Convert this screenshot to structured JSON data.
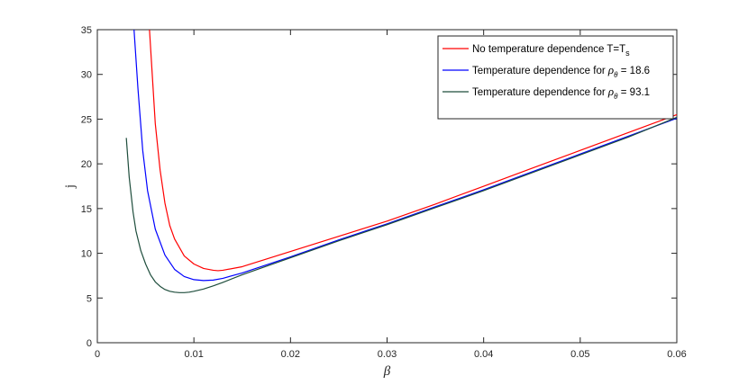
{
  "chart_data": {
    "type": "line",
    "title": "",
    "xlabel": "β",
    "ylabel": "j",
    "xlim": [
      0,
      0.06
    ],
    "ylim": [
      0,
      35
    ],
    "grid": false,
    "legend_position": "top-right",
    "x_ticks": [
      0,
      0.01,
      0.02,
      0.03,
      0.04,
      0.05,
      0.06
    ],
    "x_tick_labels": [
      "0",
      "0.01",
      "0.02",
      "0.03",
      "0.04",
      "0.05",
      "0.06"
    ],
    "y_ticks": [
      0,
      5,
      10,
      15,
      20,
      25,
      30,
      35
    ],
    "y_tick_labels": [
      "0",
      "5",
      "10",
      "15",
      "20",
      "25",
      "30",
      "35"
    ],
    "series": [
      {
        "name": "No temperature dependence T=T",
        "name_subscript": "s",
        "color": "#ff0000",
        "x": [
          0.0054,
          0.0056,
          0.006,
          0.0065,
          0.007,
          0.0075,
          0.008,
          0.009,
          0.01,
          0.011,
          0.012,
          0.0125,
          0.013,
          0.015,
          0.02,
          0.025,
          0.03,
          0.035,
          0.04,
          0.045,
          0.05,
          0.055,
          0.06
        ],
        "y": [
          35,
          31.5,
          24.5,
          19.3,
          15.6,
          13.1,
          11.6,
          9.7,
          8.8,
          8.3,
          8.1,
          8.05,
          8.1,
          8.5,
          10.2,
          11.9,
          13.6,
          15.5,
          17.5,
          19.5,
          21.5,
          23.5,
          25.5
        ]
      },
      {
        "name": "Temperature dependence for ",
        "name_symbol": "ρ",
        "name_symbol_subscript": "θ",
        "name_value": " = 18.6",
        "color": "#0000ff",
        "x": [
          0.0038,
          0.0042,
          0.0047,
          0.0052,
          0.006,
          0.007,
          0.008,
          0.009,
          0.01,
          0.011,
          0.012,
          0.013,
          0.015,
          0.02,
          0.025,
          0.03,
          0.035,
          0.04,
          0.045,
          0.05,
          0.055,
          0.06
        ],
        "y": [
          35,
          28.5,
          21.5,
          17.0,
          12.7,
          9.8,
          8.2,
          7.4,
          7.05,
          6.95,
          7.0,
          7.2,
          7.8,
          9.6,
          11.5,
          13.3,
          15.2,
          17.1,
          19.1,
          21.1,
          23.1,
          25.1
        ]
      },
      {
        "name": "Temperature dependence for ",
        "name_symbol": "ρ",
        "name_symbol_subscript": "θ",
        "name_value": " = 93.1",
        "color": "#1e4d3c",
        "x": [
          0.003,
          0.0033,
          0.0037,
          0.004,
          0.0045,
          0.005,
          0.0055,
          0.006,
          0.0065,
          0.007,
          0.0075,
          0.008,
          0.0085,
          0.009,
          0.0095,
          0.01,
          0.011,
          0.012,
          0.013,
          0.015,
          0.02,
          0.025,
          0.03,
          0.035,
          0.04,
          0.045,
          0.05,
          0.055,
          0.06
        ],
        "y": [
          22.9,
          18.5,
          14.6,
          12.5,
          10.3,
          8.8,
          7.6,
          6.8,
          6.3,
          5.95,
          5.75,
          5.65,
          5.6,
          5.6,
          5.65,
          5.75,
          6.0,
          6.35,
          6.75,
          7.6,
          9.5,
          11.4,
          13.2,
          15.1,
          17.0,
          19.0,
          21.0,
          23.0,
          25.2
        ]
      }
    ]
  }
}
